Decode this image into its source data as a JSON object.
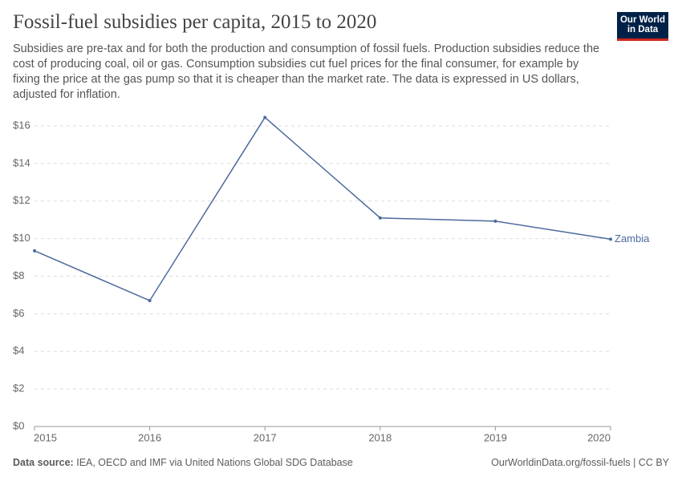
{
  "chart_data": {
    "type": "line",
    "title": "Fossil-fuel subsidies per capita, 2015 to 2020",
    "subtitle": "Subsidies are pre-tax and for both the production and consumption of fossil fuels. Production subsidies reduce the cost of producing coal, oil or gas. Consumption subsidies cut fuel prices for the final consumer, for example by fixing the price at the gas pump so that it is cheaper than the market rate. The data is expressed in US dollars, adjusted for inflation.",
    "logo": "Our World in Data",
    "source_label": "Data source:",
    "source": "IEA, OECD and IMF via United Nations Global SDG Database",
    "license": "OurWorldinData.org/fossil-fuels | CC BY",
    "x": [
      2015,
      2016,
      2017,
      2018,
      2019,
      2020
    ],
    "xlim": [
      2015,
      2020
    ],
    "xticks": [
      2015,
      2016,
      2017,
      2018,
      2019,
      2020
    ],
    "ylim": [
      0,
      16
    ],
    "yticks": [
      {
        "value": 0,
        "label": "$0"
      },
      {
        "value": 2,
        "label": "$2"
      },
      {
        "value": 4,
        "label": "$4"
      },
      {
        "value": 6,
        "label": "$6"
      },
      {
        "value": 8,
        "label": "$8"
      },
      {
        "value": 10,
        "label": "$10"
      },
      {
        "value": 12,
        "label": "$12"
      },
      {
        "value": 14,
        "label": "$14"
      },
      {
        "value": 16,
        "label": "$16"
      }
    ],
    "grid": true,
    "series": [
      {
        "name": "Zambia",
        "color": "#4c6a9c",
        "values": [
          9.35,
          6.7,
          16.45,
          11.1,
          10.93,
          9.97
        ]
      }
    ]
  }
}
